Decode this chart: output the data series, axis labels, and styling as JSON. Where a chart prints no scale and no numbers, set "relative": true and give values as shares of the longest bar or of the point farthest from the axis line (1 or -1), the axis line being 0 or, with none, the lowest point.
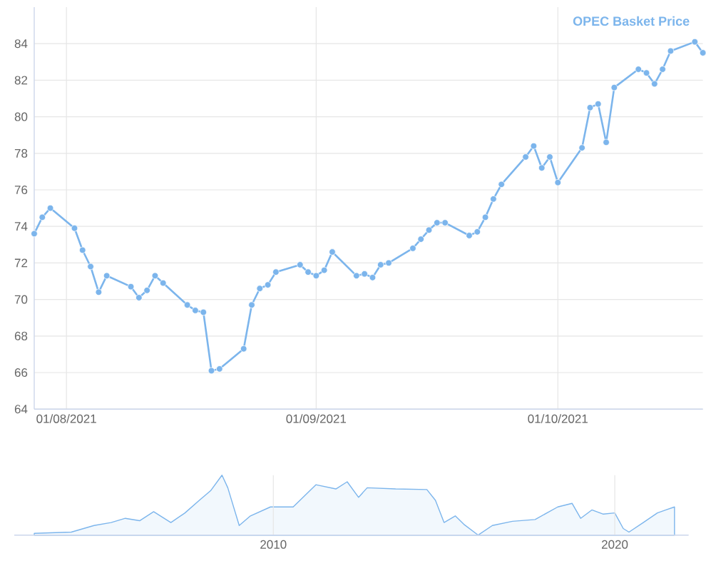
{
  "chart_data": [
    {
      "type": "line",
      "xlim": [
        "2021-07-28",
        "2021-10-19"
      ],
      "ylim": [
        64,
        86
      ],
      "yticks": [
        64,
        66,
        68,
        70,
        72,
        74,
        76,
        78,
        80,
        82,
        84
      ],
      "xticks": [
        {
          "value": "2021-08-01",
          "label": "01/08/2021"
        },
        {
          "value": "2021-09-01",
          "label": "01/09/2021"
        },
        {
          "value": "2021-10-01",
          "label": "01/10/2021"
        }
      ],
      "grid": true,
      "marker": "circle",
      "legend": "top right",
      "x": [
        "2021-07-28",
        "2021-07-29",
        "2021-07-30",
        "2021-08-02",
        "2021-08-03",
        "2021-08-04",
        "2021-08-05",
        "2021-08-06",
        "2021-08-09",
        "2021-08-10",
        "2021-08-11",
        "2021-08-12",
        "2021-08-13",
        "2021-08-16",
        "2021-08-17",
        "2021-08-18",
        "2021-08-19",
        "2021-08-20",
        "2021-08-23",
        "2021-08-24",
        "2021-08-25",
        "2021-08-26",
        "2021-08-27",
        "2021-08-30",
        "2021-08-31",
        "2021-09-01",
        "2021-09-02",
        "2021-09-03",
        "2021-09-06",
        "2021-09-07",
        "2021-09-08",
        "2021-09-09",
        "2021-09-10",
        "2021-09-13",
        "2021-09-14",
        "2021-09-15",
        "2021-09-16",
        "2021-09-17",
        "2021-09-20",
        "2021-09-21",
        "2021-09-22",
        "2021-09-23",
        "2021-09-24",
        "2021-09-27",
        "2021-09-28",
        "2021-09-29",
        "2021-09-30",
        "2021-10-01",
        "2021-10-04",
        "2021-10-05",
        "2021-10-06",
        "2021-10-07",
        "2021-10-08",
        "2021-10-11",
        "2021-10-12",
        "2021-10-13",
        "2021-10-14",
        "2021-10-15",
        "2021-10-18",
        "2021-10-19"
      ],
      "series": [
        {
          "name": "OPEC Basket Price",
          "color": "#7cb5ec",
          "values": [
            73.6,
            74.5,
            75.0,
            73.9,
            72.7,
            71.8,
            70.4,
            71.3,
            70.7,
            70.1,
            70.5,
            71.3,
            70.9,
            69.7,
            69.4,
            69.3,
            66.1,
            66.2,
            67.3,
            69.7,
            70.6,
            70.8,
            71.5,
            71.9,
            71.5,
            71.3,
            71.6,
            72.6,
            71.3,
            71.4,
            71.2,
            71.9,
            72.0,
            72.8,
            73.3,
            73.8,
            74.2,
            74.2,
            73.5,
            73.7,
            74.5,
            75.5,
            76.3,
            77.8,
            78.4,
            77.2,
            77.8,
            76.4,
            78.3,
            80.5,
            80.7,
            78.6,
            81.6,
            82.6,
            82.4,
            81.8,
            82.6,
            83.6,
            84.1,
            83.5
          ]
        }
      ]
    },
    {
      "type": "area",
      "relative": true,
      "xlim": [
        "2002-06",
        "2022-03"
      ],
      "xticks": [
        {
          "value": "2010-01",
          "label": "2010"
        },
        {
          "value": "2020-01",
          "label": "2020"
        }
      ],
      "grid": "x",
      "marker": "none",
      "tick_labels": "x",
      "color": "#7cb5ec",
      "x": [
        "2003-01",
        "2004-02",
        "2004-10",
        "2005-04",
        "2005-09",
        "2006-02",
        "2006-07",
        "2007-01",
        "2007-06",
        "2007-11",
        "2008-03",
        "2008-07",
        "2008-09",
        "2009-01",
        "2009-05",
        "2009-12",
        "2010-08",
        "2011-04",
        "2011-11",
        "2012-03",
        "2012-07",
        "2012-10",
        "2013-08",
        "2014-07",
        "2014-10",
        "2015-01",
        "2015-05",
        "2015-08",
        "2016-01",
        "2016-06",
        "2017-01",
        "2017-09",
        "2018-05",
        "2018-10",
        "2019-01",
        "2019-05",
        "2019-09",
        "2020-01",
        "2020-04",
        "2020-06",
        "2020-11",
        "2021-04",
        "2021-07",
        "2021-10"
      ],
      "values": [
        0.03,
        0.05,
        0.16,
        0.21,
        0.28,
        0.24,
        0.39,
        0.21,
        0.37,
        0.58,
        0.74,
        1,
        0.79,
        0.16,
        0.32,
        0.47,
        0.47,
        0.84,
        0.77,
        0.89,
        0.63,
        0.79,
        0.77,
        0.76,
        0.58,
        0.21,
        0.32,
        0.18,
        0,
        0.16,
        0.23,
        0.26,
        0.47,
        0.53,
        0.28,
        0.42,
        0.35,
        0.37,
        0.11,
        0.05,
        0.21,
        0.37,
        0.42,
        0.47
      ]
    }
  ]
}
